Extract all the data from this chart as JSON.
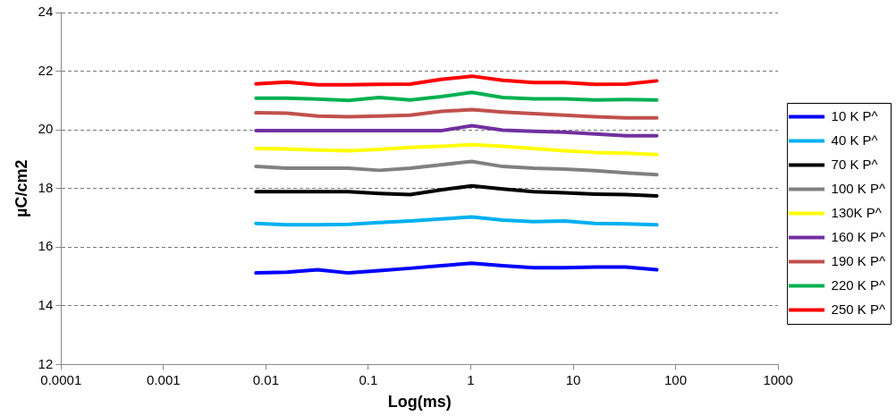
{
  "chart_data": {
    "type": "line",
    "xlabel": "Log(ms)",
    "ylabel": "µC/cm2",
    "x": [
      0.008,
      0.016,
      0.032,
      0.064,
      0.128,
      0.256,
      0.512,
      1.024,
      2.048,
      4.096,
      8.192,
      16.384,
      32.768,
      65.536
    ],
    "series": [
      {
        "name": "10 K P^",
        "color": "#0000ff",
        "values": [
          15.12,
          15.15,
          15.23,
          15.12,
          15.2,
          15.28,
          15.37,
          15.45,
          15.37,
          15.3,
          15.3,
          15.32,
          15.32,
          15.23
        ]
      },
      {
        "name": "40 K P^",
        "color": "#00b0f0",
        "values": [
          16.81,
          16.76,
          16.76,
          16.78,
          16.84,
          16.89,
          16.96,
          17.03,
          16.92,
          16.87,
          16.89,
          16.81,
          16.79,
          16.76
        ]
      },
      {
        "name": "70 K P^",
        "color": "#000000",
        "values": [
          17.89,
          17.89,
          17.89,
          17.89,
          17.83,
          17.79,
          17.95,
          18.09,
          17.98,
          17.89,
          17.85,
          17.81,
          17.79,
          17.75
        ]
      },
      {
        "name": "100 K P^",
        "color": "#808080",
        "values": [
          18.75,
          18.69,
          18.69,
          18.69,
          18.62,
          18.69,
          18.81,
          18.92,
          18.75,
          18.69,
          18.66,
          18.61,
          18.53,
          18.47
        ]
      },
      {
        "name": "130K P^",
        "color": "#ffff00",
        "values": [
          19.36,
          19.35,
          19.31,
          19.29,
          19.33,
          19.4,
          19.44,
          19.49,
          19.44,
          19.36,
          19.29,
          19.23,
          19.2,
          19.16
        ]
      },
      {
        "name": "160 K P^",
        "color": "#7030a0",
        "values": [
          19.97,
          19.97,
          19.97,
          19.97,
          19.97,
          19.97,
          19.97,
          20.14,
          19.99,
          19.95,
          19.92,
          19.86,
          19.8,
          19.8
        ]
      },
      {
        "name": "190 K P^",
        "color": "#c0504d",
        "values": [
          20.58,
          20.57,
          20.47,
          20.45,
          20.47,
          20.5,
          20.63,
          20.69,
          20.61,
          20.55,
          20.5,
          20.45,
          20.41,
          20.41
        ]
      },
      {
        "name": "220 K P^",
        "color": "#00b050",
        "values": [
          21.08,
          21.08,
          21.05,
          21.0,
          21.1,
          21.02,
          21.13,
          21.28,
          21.1,
          21.06,
          21.06,
          21.02,
          21.03,
          21.02
        ]
      },
      {
        "name": "250 K P^",
        "color": "#ff0000",
        "values": [
          21.57,
          21.63,
          21.54,
          21.54,
          21.55,
          21.56,
          21.72,
          21.83,
          21.69,
          21.61,
          21.61,
          21.55,
          21.56,
          21.67
        ]
      }
    ],
    "xlim": [
      0.0001,
      1000
    ],
    "xticks": [
      0.0001,
      0.001,
      0.01,
      0.1,
      1,
      10,
      100,
      1000
    ],
    "ylim": [
      12,
      24
    ],
    "yticks": [
      12,
      14,
      16,
      18,
      20,
      22,
      24
    ],
    "log": "x",
    "grid": "y",
    "legend": "right",
    "marker": "none",
    "line_style": "solid"
  }
}
